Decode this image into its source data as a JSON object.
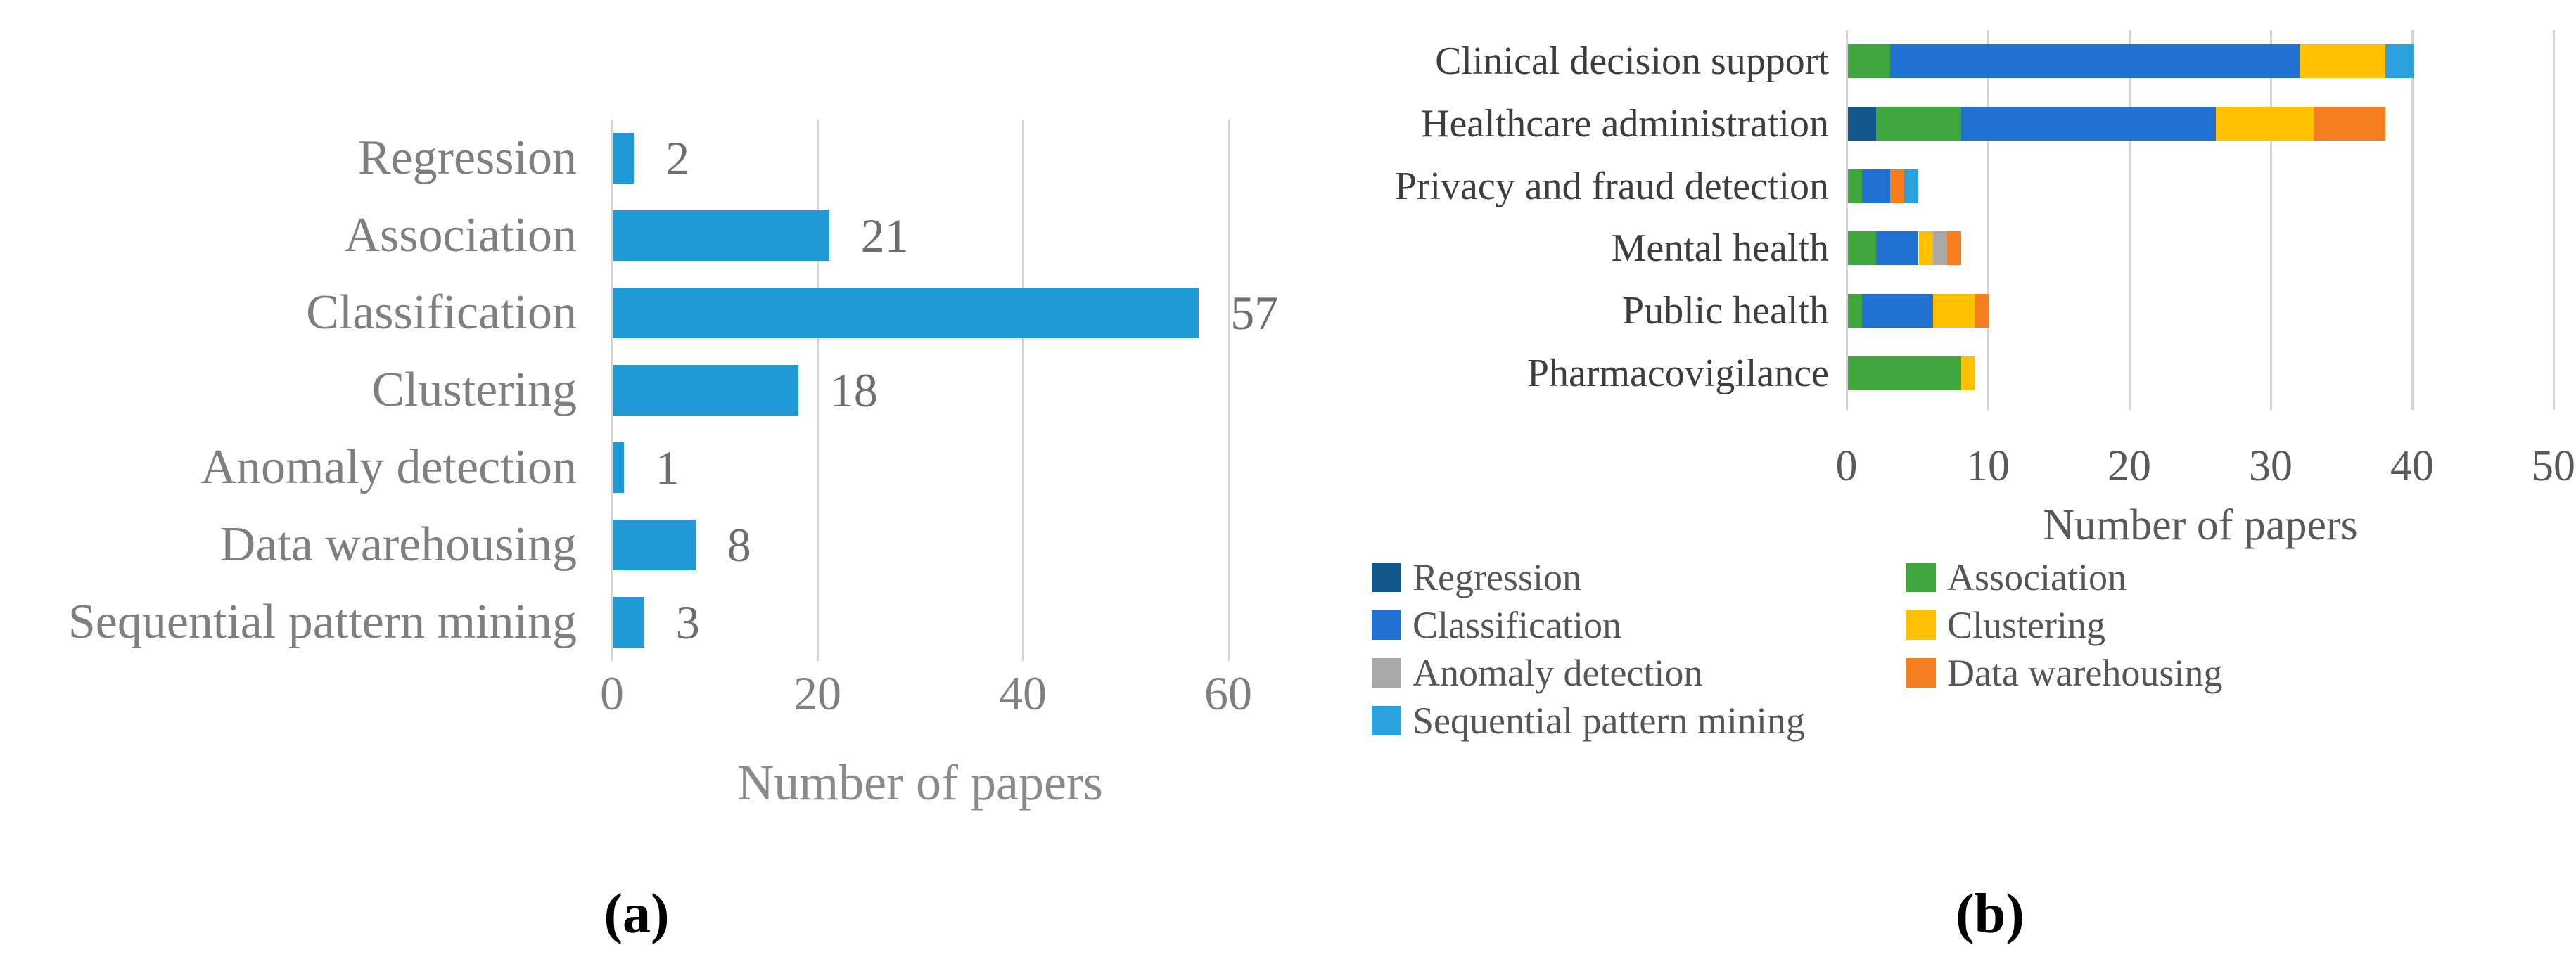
{
  "chart_data": [
    {
      "type": "bar",
      "orientation": "horizontal",
      "panel_label": "(a)",
      "categories": [
        "Regression",
        "Association",
        "Classification",
        "Clustering",
        "Anomaly detection",
        "Data warehousing",
        "Sequential pattern mining"
      ],
      "values": [
        2,
        21,
        57,
        18,
        1,
        8,
        3
      ],
      "data_labels": [
        "2",
        "21",
        "57",
        "18",
        "1",
        "8",
        "3"
      ],
      "bar_color": "#1F9AD6",
      "xlabel": "Number of papers",
      "ylabel": "",
      "xticks": [
        0,
        20,
        40,
        60
      ],
      "xlim": [
        0,
        60
      ],
      "grid": true,
      "legend_position": "none"
    },
    {
      "type": "bar",
      "subtype": "stacked",
      "orientation": "horizontal",
      "panel_label": "(b)",
      "categories": [
        "Clinical decision support",
        "Healthcare administration",
        "Privacy and fraud detection",
        "Mental health",
        "Public health",
        "Pharmacovigilance"
      ],
      "series": [
        {
          "name": "Regression",
          "color": "#12588C",
          "values": [
            0,
            2,
            0,
            0,
            0,
            0
          ]
        },
        {
          "name": "Association",
          "color": "#3EA63C",
          "values": [
            3,
            6,
            1,
            2,
            1,
            8
          ]
        },
        {
          "name": "Classification",
          "color": "#2070D0",
          "values": [
            29,
            18,
            2,
            3,
            5,
            0
          ]
        },
        {
          "name": "Clustering",
          "color": "#FFC000",
          "values": [
            6,
            7,
            0,
            1,
            3,
            1
          ]
        },
        {
          "name": "Anomaly detection",
          "color": "#A9A9A9",
          "values": [
            0,
            0,
            0,
            1,
            0,
            0
          ]
        },
        {
          "name": "Data warehousing",
          "color": "#F57E1F",
          "values": [
            0,
            5,
            1,
            1,
            1,
            0
          ]
        },
        {
          "name": "Sequential pattern mining",
          "color": "#29A1DC",
          "values": [
            2,
            0,
            1,
            0,
            0,
            0
          ]
        }
      ],
      "totals": [
        40,
        38,
        5,
        8,
        10,
        9
      ],
      "xlabel": "Number of papers",
      "ylabel": "",
      "xticks": [
        0,
        10,
        20,
        30,
        40,
        50
      ],
      "xlim": [
        0,
        50
      ],
      "grid": true,
      "legend_position": "bottom-left",
      "legend_columns": [
        [
          "Regression",
          "Classification",
          "Anomaly detection",
          "Sequential pattern mining"
        ],
        [
          "Association",
          "Clustering",
          "Data warehousing"
        ]
      ]
    }
  ]
}
